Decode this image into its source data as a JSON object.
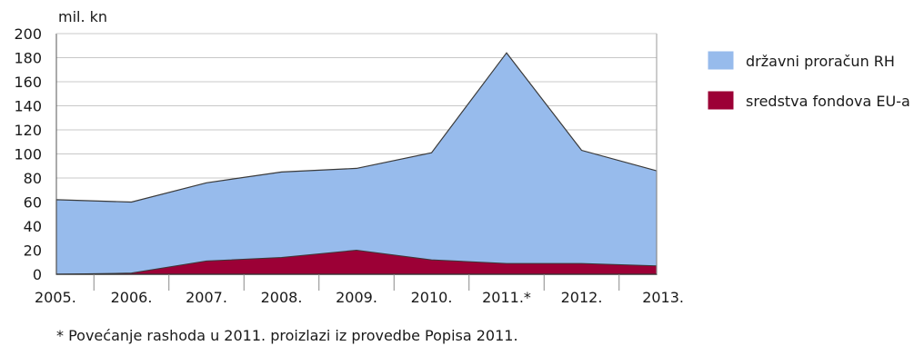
{
  "chart_data": {
    "type": "area",
    "stacked": true,
    "title": "",
    "xlabel": "",
    "ylabel": "mil. kn",
    "categories": [
      "2005.",
      "2006.",
      "2007.",
      "2008.",
      "2009.",
      "2010.",
      "2011.*",
      "2012.",
      "2013."
    ],
    "ylim": [
      0,
      200
    ],
    "yticks": [
      0,
      20,
      40,
      60,
      80,
      100,
      120,
      140,
      160,
      180,
      200
    ],
    "grid": "horizontal",
    "legend_position": "right",
    "series": [
      {
        "name": "državni proračun RH",
        "values": [
          62,
          59,
          65,
          71,
          68,
          89,
          175,
          94,
          79
        ],
        "color": "#97bbec"
      },
      {
        "name": "sredstva fondova EU-a",
        "values": [
          0,
          1,
          11,
          14,
          20,
          12,
          9,
          9,
          7
        ],
        "color": "#9c0036"
      }
    ],
    "footnote": "* Povećanje rashoda u 2011. proizlazi iz provedbe Popisa 2011."
  }
}
